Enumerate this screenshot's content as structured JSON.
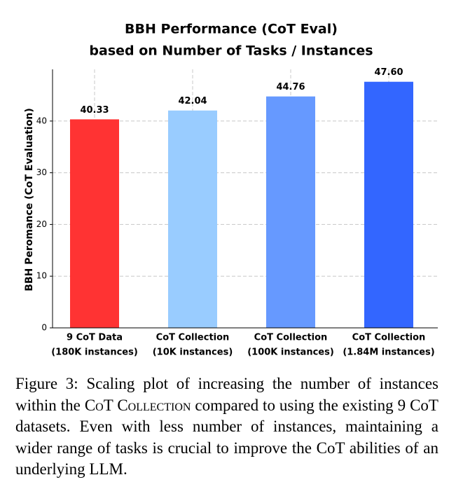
{
  "chart_data": {
    "type": "bar",
    "title": [
      "BBH Performance (CoT Eval)",
      "based on Number of Tasks / Instances"
    ],
    "y_label": "BBH Peromance (CoT Evaluation)",
    "categories": [
      [
        "9 CoT Data",
        "(180K instances)"
      ],
      [
        "CoT Collection",
        "(10K instances)"
      ],
      [
        "CoT Collection",
        "(100K instances)"
      ],
      [
        "CoT Collection",
        "(1.84M instances)"
      ]
    ],
    "values": [
      40.33,
      42.04,
      44.76,
      47.6
    ],
    "value_labels": [
      "40.33",
      "42.04",
      "44.76",
      "47.60"
    ],
    "colors": [
      "#ff3333",
      "#99ccff",
      "#6699ff",
      "#3366ff"
    ],
    "ylim": [
      0,
      50
    ],
    "yticks": [
      0,
      10,
      20,
      30,
      40
    ],
    "grid": true
  },
  "caption": [
    "Figure 3: Scaling plot of increasing the number of instances within the ",
    "CoT Collection",
    " compared to using the existing 9 CoT datasets. Even with less number of instances, maintaining a wider range of tasks is crucial to improve the CoT abilities of an underlying LLM."
  ]
}
